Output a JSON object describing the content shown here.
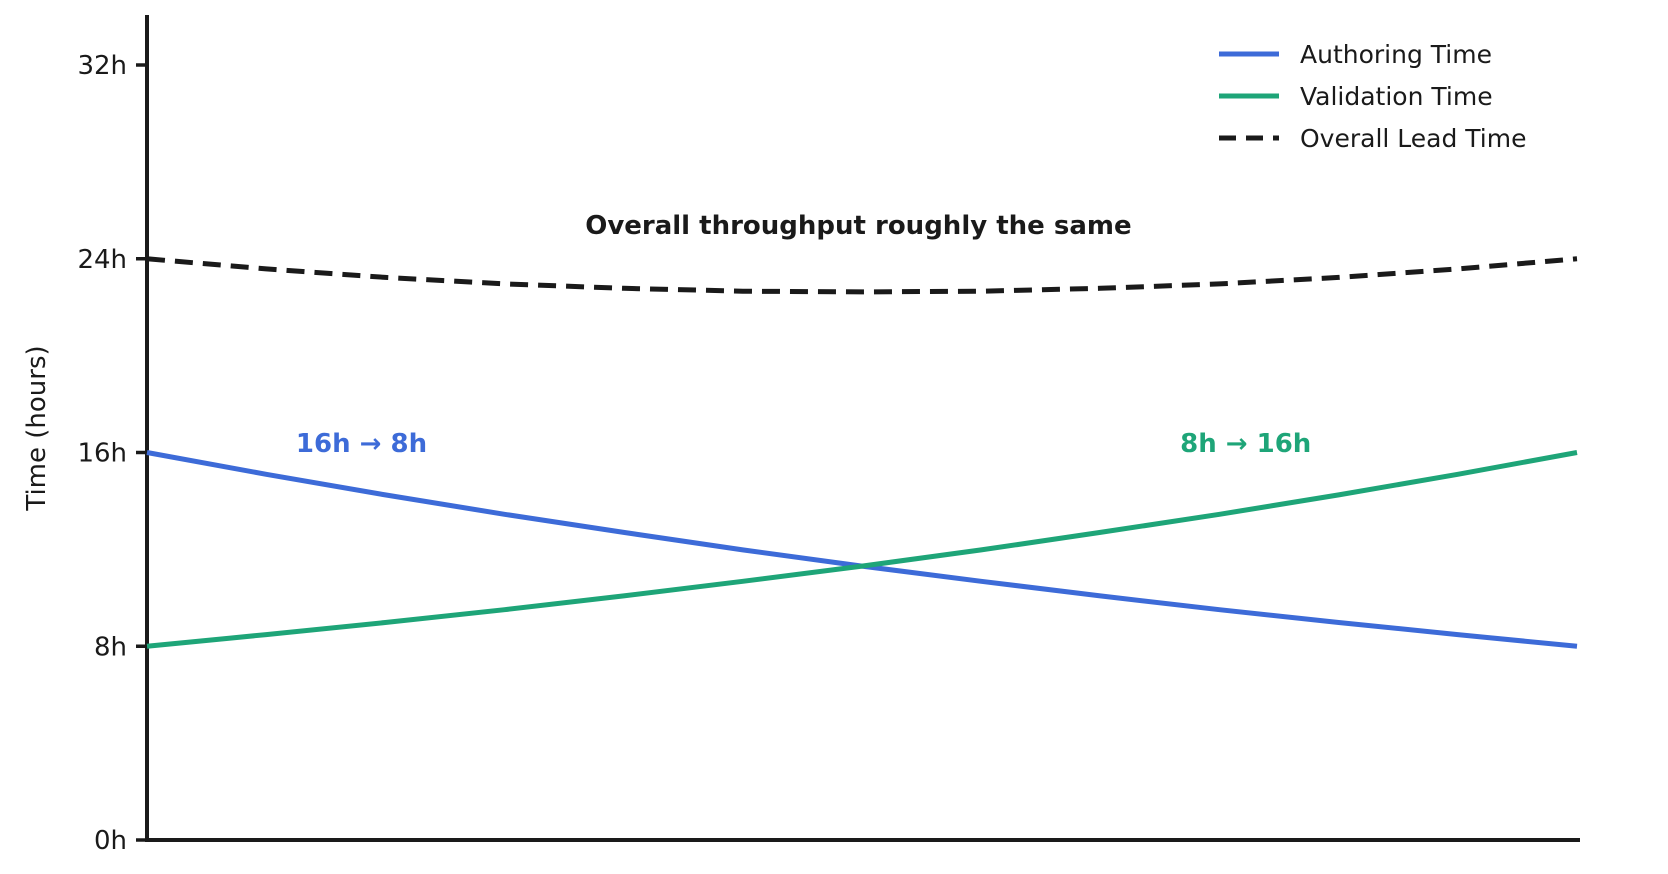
{
  "figure": {
    "background": "#ffffff",
    "axis_color": "#1a1a1a"
  },
  "chart_data": {
    "type": "line",
    "title": "",
    "xlabel": "",
    "ylabel": "Time (hours)",
    "ylim": [
      0,
      34
    ],
    "grid": false,
    "x_axis_ticks_visible": false,
    "yticks": [
      {
        "value": 0,
        "label": "0h"
      },
      {
        "value": 8,
        "label": "8h"
      },
      {
        "value": 16,
        "label": "16h"
      },
      {
        "value": 24,
        "label": "24h"
      },
      {
        "value": 32,
        "label": "32h"
      }
    ],
    "x": [
      0,
      1,
      2,
      3,
      4,
      5,
      6,
      7,
      8,
      9,
      10,
      11,
      12
    ],
    "series": [
      {
        "name": "Authoring Time",
        "color": "#3d6bd8",
        "line_style": "solid",
        "values": [
          16,
          15.1,
          14.25,
          13.45,
          12.7,
          11.98,
          11.31,
          10.68,
          10.08,
          9.51,
          8.98,
          8.48,
          8
        ]
      },
      {
        "name": "Validation Time",
        "color": "#1ea578",
        "line_style": "solid",
        "values": [
          8,
          8.48,
          8.98,
          9.51,
          10.08,
          10.68,
          11.31,
          11.98,
          12.7,
          13.45,
          14.25,
          15.1,
          16
        ]
      },
      {
        "name": "Overall Lead Time",
        "color": "#1a1a1a",
        "line_style": "dashed",
        "values": [
          24,
          23.58,
          23.23,
          22.96,
          22.78,
          22.66,
          22.63,
          22.66,
          22.78,
          22.96,
          23.23,
          23.58,
          24
        ]
      }
    ],
    "annotations": [
      {
        "text": "Overall throughput roughly the same",
        "x": 5.97,
        "y": 25.4,
        "color": "#1a1a1a"
      },
      {
        "text": "16h → 8h",
        "x": 1.8,
        "y": 16.4,
        "color": "#3d6bd8"
      },
      {
        "text": "8h → 16h",
        "x": 9.22,
        "y": 16.4,
        "color": "#1ea578"
      }
    ],
    "legend": {
      "position": "top-right",
      "frame": false,
      "entries": [
        "Authoring Time",
        "Validation Time",
        "Overall Lead Time"
      ]
    }
  }
}
